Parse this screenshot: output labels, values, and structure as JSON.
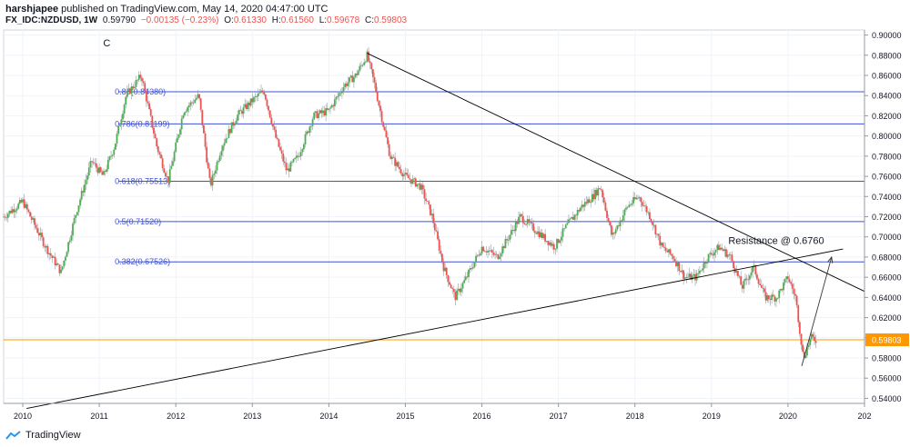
{
  "header": {
    "publisher": "harshjapee",
    "published_text": "published on TradingView.com, May 14, 2020 04:47:00 UTC",
    "symbol": "FX_IDC:NZDUSD, 1W",
    "last": "0.59790",
    "change": "−0.00135 (−0.23%)",
    "o_label": "O:",
    "o_val": "0.61330",
    "h_label": "H:",
    "h_val": "0.61560",
    "l_label": "L:",
    "l_val": "0.59678",
    "c_label": "C:",
    "c_val": "0.59803"
  },
  "footer": {
    "brand": "TradingView"
  },
  "colors": {
    "up": "#4caf50",
    "down": "#ef5350",
    "fib": "#3f51d6",
    "price": "#ff9800",
    "trend": "#000000"
  },
  "chart_data": {
    "type": "line",
    "title": "",
    "xlabel": "",
    "ylabel": "",
    "x_ticks": [
      "2010",
      "2011",
      "2012",
      "2013",
      "2014",
      "2015",
      "2016",
      "2017",
      "2018",
      "2019",
      "2020",
      "202"
    ],
    "y_ticks": [
      "0.90000",
      "0.88000",
      "0.86000",
      "0.84000",
      "0.82000",
      "0.80000",
      "0.78000",
      "0.76000",
      "0.74000",
      "0.72000",
      "0.70000",
      "0.68000",
      "0.66000",
      "0.64000",
      "0.62000",
      "0.60000",
      "0.58000",
      "0.56000",
      "0.54000"
    ],
    "ylim": [
      0.535,
      0.905
    ],
    "xlim": [
      2009.75,
      2021.0
    ],
    "series": [
      {
        "values_x": [
          2009.75,
          2010.0,
          2010.3,
          2010.5,
          2010.7,
          2010.9,
          2011.05,
          2011.2,
          2011.35,
          2011.55,
          2011.75,
          2011.9,
          2012.1,
          2012.3,
          2012.45,
          2012.6,
          2012.8,
          2013.0,
          2013.15,
          2013.3,
          2013.45,
          2013.6,
          2013.8,
          2014.0,
          2014.2,
          2014.35,
          2014.5,
          2014.6,
          2014.8,
          2015.0,
          2015.2,
          2015.35,
          2015.5,
          2015.65,
          2015.8,
          2016.0,
          2016.2,
          2016.35,
          2016.5,
          2016.65,
          2016.8,
          2016.95,
          2017.1,
          2017.3,
          2017.45,
          2017.55,
          2017.7,
          2017.9,
          2018.05,
          2018.2,
          2018.35,
          2018.5,
          2018.65,
          2018.8,
          2018.95,
          2019.1,
          2019.25,
          2019.4,
          2019.55,
          2019.7,
          2019.85,
          2020.0,
          2020.1,
          2020.2,
          2020.3,
          2020.37
        ],
        "values_y": [
          0.72,
          0.735,
          0.69,
          0.665,
          0.725,
          0.775,
          0.76,
          0.79,
          0.84,
          0.86,
          0.79,
          0.755,
          0.825,
          0.84,
          0.75,
          0.79,
          0.82,
          0.835,
          0.845,
          0.8,
          0.765,
          0.78,
          0.82,
          0.825,
          0.85,
          0.86,
          0.88,
          0.85,
          0.78,
          0.76,
          0.75,
          0.72,
          0.67,
          0.64,
          0.66,
          0.69,
          0.68,
          0.7,
          0.72,
          0.71,
          0.7,
          0.69,
          0.71,
          0.73,
          0.74,
          0.75,
          0.7,
          0.73,
          0.74,
          0.72,
          0.69,
          0.68,
          0.66,
          0.66,
          0.68,
          0.69,
          0.68,
          0.65,
          0.67,
          0.64,
          0.64,
          0.66,
          0.64,
          0.58,
          0.6,
          0.598
        ]
      }
    ],
    "fib_levels": [
      {
        "label": "0.88(0.84380)",
        "value": 0.8438
      },
      {
        "label": "0.786(0.81199)",
        "value": 0.81199
      },
      {
        "label": "0.618(0.75513)",
        "value": 0.75513
      },
      {
        "label": "0.5(0.71520)",
        "value": 0.7152
      },
      {
        "label": "0.382(0.67526)",
        "value": 0.67526
      }
    ],
    "current_price": {
      "label": "0.59803",
      "value": 0.59803
    },
    "annotations": [
      {
        "text": "C",
        "x": 2011.05,
        "y": 0.889
      },
      {
        "text": "Resistance @ 0.6760",
        "x": 2019.22,
        "y": 0.693
      }
    ],
    "trendlines": [
      {
        "x1": 2014.5,
        "y1": 0.882,
        "x2": 2021.0,
        "y2": 0.646
      },
      {
        "x1": 2010.05,
        "y1": 0.53,
        "x2": 2020.72,
        "y2": 0.688
      }
    ],
    "arrow": {
      "x1": 2020.18,
      "y1": 0.572,
      "x2": 2020.57,
      "y2": 0.68
    }
  }
}
